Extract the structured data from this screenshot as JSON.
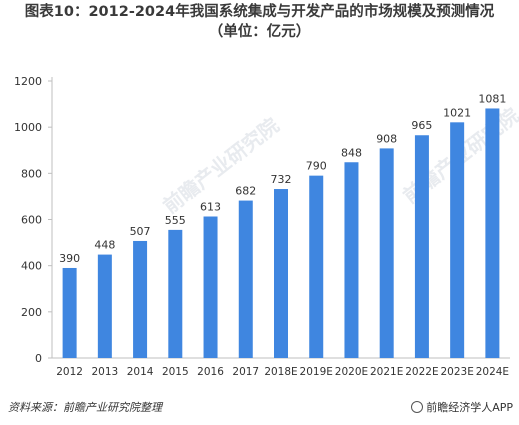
{
  "title_line1": "图表10：2012-2024年我国系统集成与开发产品的市场规模及预测情况",
  "title_line2": "（单位：亿元）",
  "footer_source": "资料来源：前瞻产业研究院整理",
  "footer_brand": "前瞻经济学人APP",
  "watermark_text": "前瞻产业研究院",
  "colors": {
    "bar": "#3f86e0",
    "axis": "#bfbfbf",
    "text": "#333333"
  },
  "chart_data": {
    "type": "bar",
    "categories": [
      "2012",
      "2013",
      "2014",
      "2015",
      "2016",
      "2017",
      "2018E",
      "2019E",
      "2020E",
      "2021E",
      "2022E",
      "2023E",
      "2024E"
    ],
    "values": [
      390,
      448,
      507,
      555,
      613,
      682,
      732,
      790,
      848,
      908,
      965,
      1021,
      1081
    ],
    "ylim": [
      0,
      1200
    ],
    "yticks": [
      0,
      200,
      400,
      600,
      800,
      1000,
      1200
    ],
    "grid": false,
    "legend": "none"
  }
}
